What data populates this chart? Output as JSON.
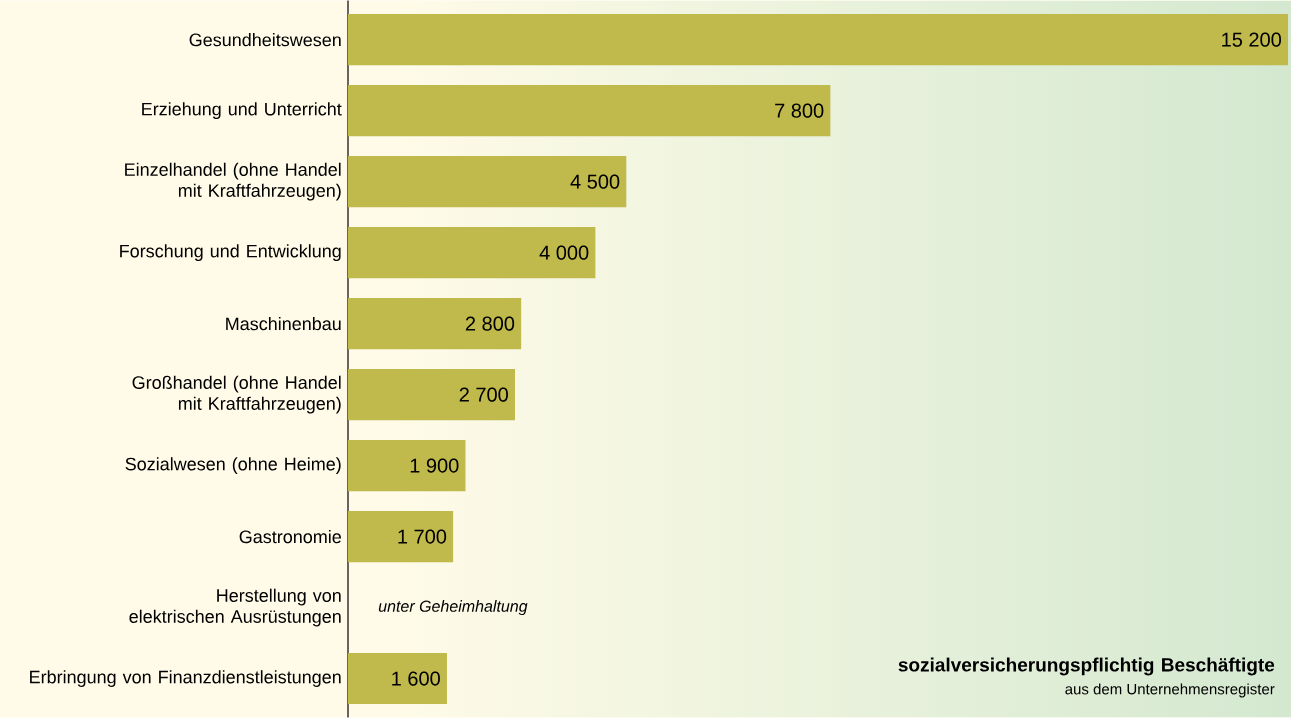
{
  "chart_data": {
    "type": "bar",
    "orientation": "horizontal",
    "title": "sozialversicherungspflichtig Beschäftigte",
    "subtitle": "aus dem Unternehmensregister",
    "categories": [
      "Gesundheitswesen",
      "Erziehung und Unterricht",
      "Einzelhandel (ohne Handel mit Kraftfahrzeugen)",
      "Forschung und Entwicklung",
      "Maschinenbau",
      "Großhandel (ohne Handel mit Kraftfahrzeugen)",
      "Sozialwesen (ohne Heime)",
      "Gastronomie",
      "Herstellung von elektrischen Ausrüstungen",
      "Erbringung von Finanzdienstleistungen"
    ],
    "values": [
      15200,
      7800,
      4500,
      4000,
      2800,
      2700,
      1900,
      1700,
      null,
      1600
    ],
    "value_labels": [
      "15 200",
      "7 800",
      "4 500",
      "4 000",
      "2 800",
      "2 700",
      "1 900",
      "1 700",
      null,
      "1 600"
    ],
    "color": "#c0b94b",
    "annotations": [
      "unter Geheimhaltung"
    ]
  }
}
